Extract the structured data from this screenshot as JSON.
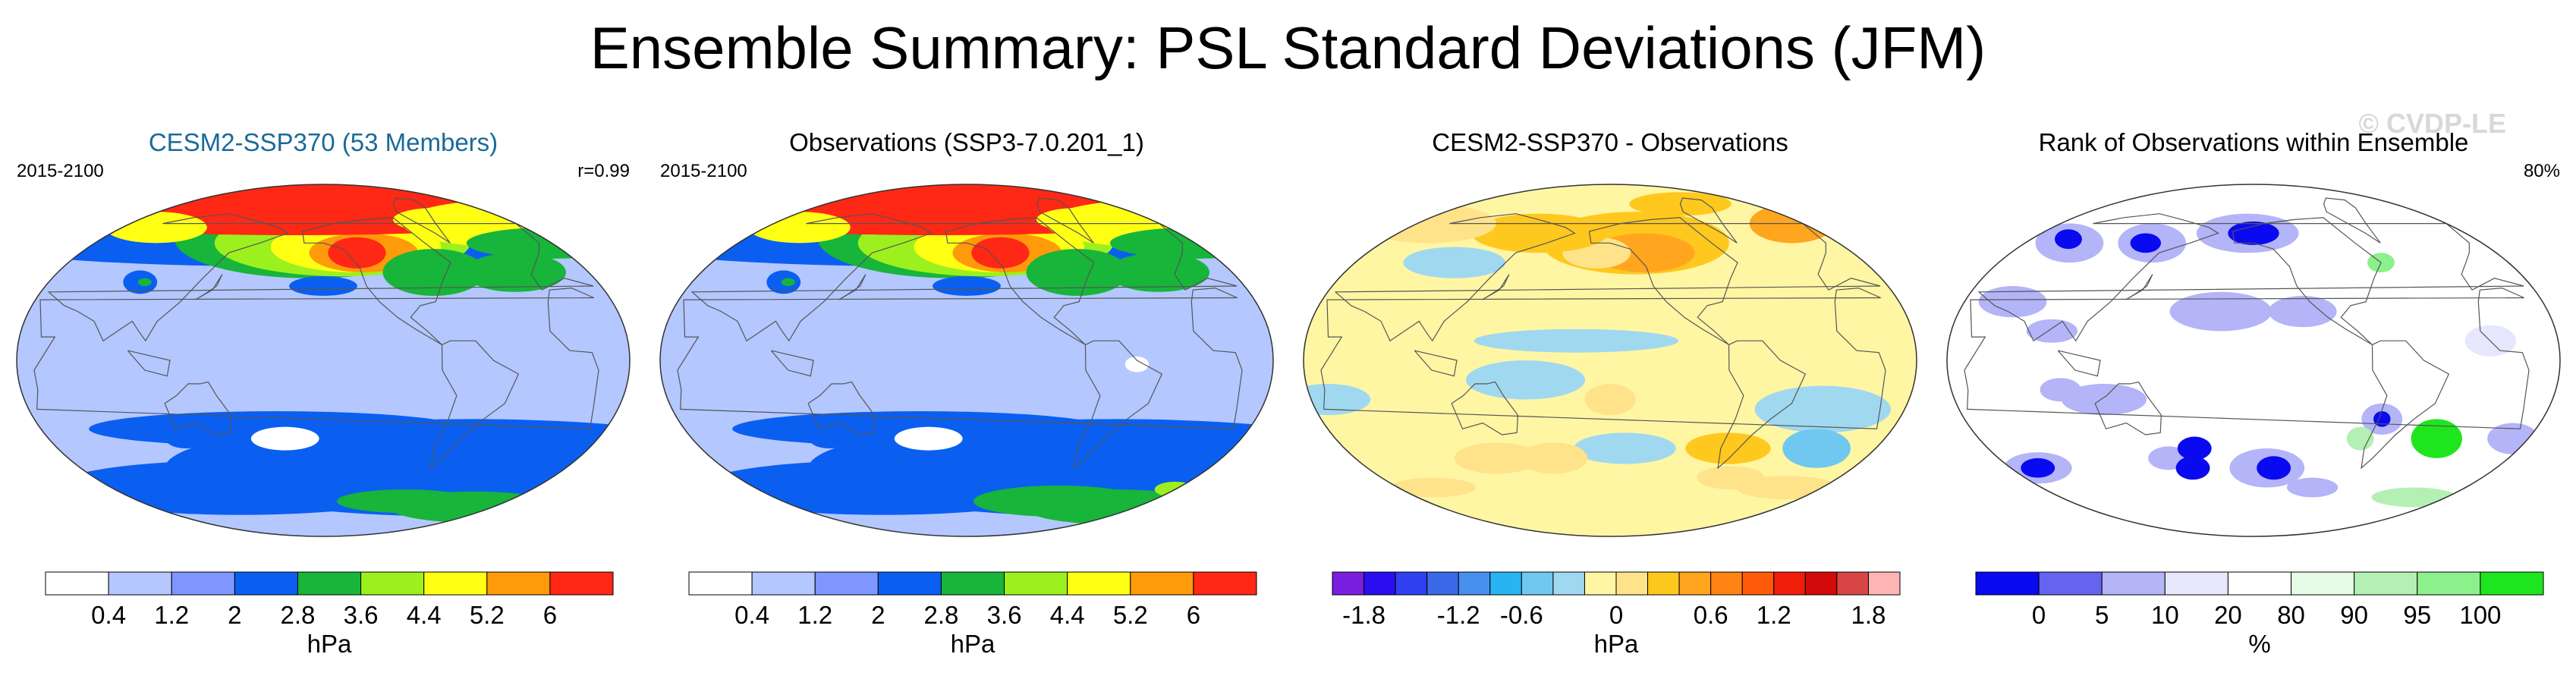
{
  "title": "Ensemble Summary: PSL Standard Deviations (JFM)",
  "watermark": "© CVDP-LE",
  "chart_data": [
    {
      "type": "heatmap",
      "title": "CESM2-SSP370 (53 Members)",
      "title_color": "#1a6a9a",
      "left_label": "2015-2100",
      "right_label": "r=0.99",
      "colorbar": {
        "unit": "hPa",
        "colors": [
          "#ffffff",
          "#b4c7ff",
          "#7f96ff",
          "#0a5ff0",
          "#17b53a",
          "#9cf01e",
          "#ffff14",
          "#ff9a0a",
          "#ff2814"
        ],
        "tick_labels": [
          "0.4",
          "1.2",
          "2",
          "2.8",
          "3.6",
          "4.4",
          "5.2",
          "6"
        ]
      },
      "blobs": [
        {
          "lon": 180,
          "lat": -35,
          "rx": 110,
          "ry": 9,
          "c": 3
        },
        {
          "lon": -40,
          "lat": -55,
          "rx": 180,
          "ry": 25,
          "c": 3
        },
        {
          "lon": 140,
          "lat": -65,
          "rx": 110,
          "ry": 14,
          "c": 3
        },
        {
          "lon": -100,
          "lat": -55,
          "rx": 60,
          "ry": 12,
          "c": 3
        },
        {
          "lon": 10,
          "lat": -75,
          "rx": 50,
          "ry": 8,
          "c": 4
        },
        {
          "lon": -70,
          "lat": -72,
          "rx": 40,
          "ry": 6,
          "c": 4
        },
        {
          "lon": 120,
          "lat": -40,
          "rx": 12,
          "ry": 5,
          "c": 3
        },
        {
          "lon": -175,
          "lat": -40,
          "rx": 20,
          "ry": 6,
          "c": 0
        },
        {
          "lon": 180,
          "lat": 60,
          "rx": 180,
          "ry": 12,
          "c": 3
        },
        {
          "lon": -160,
          "lat": 62,
          "rx": 80,
          "ry": 20,
          "c": 4
        },
        {
          "lon": -135,
          "lat": 60,
          "rx": 75,
          "ry": 17,
          "c": 5
        },
        {
          "lon": -125,
          "lat": 58,
          "rx": 50,
          "ry": 13,
          "c": 6
        },
        {
          "lon": -120,
          "lat": 55,
          "rx": 32,
          "ry": 10,
          "c": 7
        },
        {
          "lon": -125,
          "lat": 55,
          "rx": 17,
          "ry": 8,
          "c": 8
        },
        {
          "lon": 180,
          "lat": 77,
          "rx": 180,
          "ry": 13,
          "c": 8
        },
        {
          "lon": 20,
          "lat": 70,
          "rx": 60,
          "ry": 12,
          "c": 6
        },
        {
          "lon": 30,
          "lat": 60,
          "rx": 50,
          "ry": 8,
          "c": 4
        },
        {
          "lon": -40,
          "lat": 72,
          "rx": 25,
          "ry": 6,
          "c": 6
        },
        {
          "lon": 60,
          "lat": 68,
          "rx": 30,
          "ry": 8,
          "c": 6
        },
        {
          "lon": -75,
          "lat": 45,
          "rx": 30,
          "ry": 12,
          "c": 4
        },
        {
          "lon": -20,
          "lat": 45,
          "rx": 30,
          "ry": 10,
          "c": 4
        },
        {
          "lon": -150,
          "lat": 38,
          "rx": 20,
          "ry": 5,
          "c": 3
        },
        {
          "lon": 90,
          "lat": 40,
          "rx": 10,
          "ry": 6,
          "c": 3
        },
        {
          "lon": 93,
          "lat": 40,
          "rx": 4,
          "ry": 2,
          "c": 4
        }
      ]
    },
    {
      "type": "heatmap",
      "title": "Observations (SSP3-7.0.201_1)",
      "title_color": "#000000",
      "left_label": "2015-2100",
      "right_label": "",
      "colorbar": {
        "unit": "hPa",
        "colors": [
          "#ffffff",
          "#b4c7ff",
          "#7f96ff",
          "#0a5ff0",
          "#17b53a",
          "#9cf01e",
          "#ffff14",
          "#ff9a0a",
          "#ff2814"
        ],
        "tick_labels": [
          "0.4",
          "1.2",
          "2",
          "2.8",
          "3.6",
          "4.4",
          "5.2",
          "6"
        ]
      },
      "blobs": [
        {
          "lon": 180,
          "lat": -35,
          "rx": 110,
          "ry": 9,
          "c": 3
        },
        {
          "lon": -40,
          "lat": -55,
          "rx": 180,
          "ry": 25,
          "c": 3
        },
        {
          "lon": 140,
          "lat": -65,
          "rx": 110,
          "ry": 14,
          "c": 3
        },
        {
          "lon": -100,
          "lat": -55,
          "rx": 60,
          "ry": 12,
          "c": 3
        },
        {
          "lon": 10,
          "lat": -75,
          "rx": 55,
          "ry": 9,
          "c": 4
        },
        {
          "lon": -60,
          "lat": -72,
          "rx": 50,
          "ry": 8,
          "c": 4
        },
        {
          "lon": 30,
          "lat": -66,
          "rx": 12,
          "ry": 4,
          "c": 5
        },
        {
          "lon": 120,
          "lat": -40,
          "rx": 12,
          "ry": 5,
          "c": 3
        },
        {
          "lon": -175,
          "lat": -40,
          "rx": 20,
          "ry": 6,
          "c": 0
        },
        {
          "lon": 180,
          "lat": 60,
          "rx": 180,
          "ry": 12,
          "c": 3
        },
        {
          "lon": -160,
          "lat": 62,
          "rx": 80,
          "ry": 20,
          "c": 4
        },
        {
          "lon": -135,
          "lat": 60,
          "rx": 75,
          "ry": 17,
          "c": 5
        },
        {
          "lon": -125,
          "lat": 58,
          "rx": 50,
          "ry": 13,
          "c": 6
        },
        {
          "lon": -120,
          "lat": 55,
          "rx": 32,
          "ry": 10,
          "c": 7
        },
        {
          "lon": -125,
          "lat": 55,
          "rx": 17,
          "ry": 8,
          "c": 8
        },
        {
          "lon": 180,
          "lat": 77,
          "rx": 180,
          "ry": 13,
          "c": 8
        },
        {
          "lon": 20,
          "lat": 70,
          "rx": 60,
          "ry": 12,
          "c": 6
        },
        {
          "lon": 30,
          "lat": 60,
          "rx": 50,
          "ry": 8,
          "c": 4
        },
        {
          "lon": -40,
          "lat": 72,
          "rx": 25,
          "ry": 6,
          "c": 6
        },
        {
          "lon": 60,
          "lat": 68,
          "rx": 30,
          "ry": 8,
          "c": 6
        },
        {
          "lon": -75,
          "lat": 45,
          "rx": 30,
          "ry": 12,
          "c": 4
        },
        {
          "lon": -20,
          "lat": 45,
          "rx": 30,
          "ry": 10,
          "c": 4
        },
        {
          "lon": -150,
          "lat": 38,
          "rx": 20,
          "ry": 5,
          "c": 3
        },
        {
          "lon": 90,
          "lat": 40,
          "rx": 10,
          "ry": 6,
          "c": 3
        },
        {
          "lon": 93,
          "lat": 40,
          "rx": 4,
          "ry": 2,
          "c": 4
        },
        {
          "lon": -50,
          "lat": -2,
          "rx": 7,
          "ry": 4,
          "c": 0
        }
      ]
    },
    {
      "type": "heatmap",
      "title": "CESM2-SSP370 - Observations",
      "title_color": "#000000",
      "left_label": "",
      "right_label": "",
      "colorbar": {
        "unit": "hPa",
        "colors": [
          "#7a1ee0",
          "#2a0ef0",
          "#3040f0",
          "#3a6ae8",
          "#4890f0",
          "#28b4f0",
          "#70c8f0",
          "#a0d8f0",
          "#fff6a4",
          "#ffe38a",
          "#ffc81e",
          "#ffa61e",
          "#ff8414",
          "#ff5a0a",
          "#f01e0a",
          "#d20a0a",
          "#d84646",
          "#ffb4b4"
        ],
        "tick_labels": [
          "-1.8",
          "-1.2",
          "-0.6",
          "0",
          "0.6",
          "1.2",
          "1.8"
        ]
      },
      "blobs": [
        {
          "lon": -20,
          "lat": -25,
          "rx": 40,
          "ry": 12,
          "c": 7
        },
        {
          "lon": 160,
          "lat": -10,
          "rx": 35,
          "ry": 10,
          "c": 7
        },
        {
          "lon": -170,
          "lat": 10,
          "rx": 60,
          "ry": 6,
          "c": 7
        },
        {
          "lon": -10,
          "lat": -45,
          "rx": 20,
          "ry": 10,
          "c": 6
        },
        {
          "lon": 100,
          "lat": 50,
          "rx": 30,
          "ry": 8,
          "c": 7
        },
        {
          "lon": 40,
          "lat": -20,
          "rx": 25,
          "ry": 8,
          "c": 7
        },
        {
          "lon": -140,
          "lat": -45,
          "rx": 30,
          "ry": 8,
          "c": 7
        },
        {
          "lon": -130,
          "lat": 60,
          "rx": 55,
          "ry": 16,
          "c": 10
        },
        {
          "lon": -125,
          "lat": 55,
          "rx": 30,
          "ry": 10,
          "c": 11
        },
        {
          "lon": -160,
          "lat": 55,
          "rx": 20,
          "ry": 8,
          "c": 9
        },
        {
          "lon": 150,
          "lat": 65,
          "rx": 40,
          "ry": 10,
          "c": 10
        },
        {
          "lon": 40,
          "lat": 70,
          "rx": 40,
          "ry": 10,
          "c": 9
        },
        {
          "lon": 20,
          "lat": 70,
          "rx": 25,
          "ry": 10,
          "c": 11
        },
        {
          "lon": -60,
          "lat": 80,
          "rx": 30,
          "ry": 6,
          "c": 10
        },
        {
          "lon": -70,
          "lat": -45,
          "rx": 25,
          "ry": 8,
          "c": 10
        },
        {
          "lon": -55,
          "lat": -60,
          "rx": 20,
          "ry": 6,
          "c": 9
        },
        {
          "lon": 130,
          "lat": -50,
          "rx": 25,
          "ry": 8,
          "c": 9
        },
        {
          "lon": 60,
          "lat": -65,
          "rx": 25,
          "ry": 5,
          "c": 9
        },
        {
          "lon": -150,
          "lat": -20,
          "rx": 15,
          "ry": 8,
          "c": 9
        },
        {
          "lon": 170,
          "lat": -50,
          "rx": 20,
          "ry": 8,
          "c": 9
        },
        {
          "lon": 0,
          "lat": -65,
          "rx": 30,
          "ry": 6,
          "c": 9
        }
      ]
    },
    {
      "type": "heatmap",
      "title": "Rank of Observations within Ensemble",
      "title_color": "#000000",
      "left_label": "",
      "right_label": "80%",
      "colorbar": {
        "unit": "%",
        "colors": [
          "#0a0af0",
          "#6464f0",
          "#b4b4f8",
          "#e6e6fc",
          "#ffffff",
          "#e6fce6",
          "#b4f0b4",
          "#8cf08c",
          "#1ee61e"
        ],
        "tick_labels": [
          "0",
          "5",
          "10",
          "20",
          "80",
          "90",
          "95",
          "100"
        ]
      },
      "blobs": [
        {
          "lon": -155,
          "lat": 65,
          "rx": 30,
          "ry": 10,
          "c": 2
        },
        {
          "lon": -150,
          "lat": 65,
          "rx": 15,
          "ry": 6,
          "c": 0
        },
        {
          "lon": 130,
          "lat": 60,
          "rx": 20,
          "ry": 10,
          "c": 2
        },
        {
          "lon": 125,
          "lat": 60,
          "rx": 9,
          "ry": 5,
          "c": 0
        },
        {
          "lon": 65,
          "lat": 60,
          "rx": 20,
          "ry": 10,
          "c": 2
        },
        {
          "lon": 60,
          "lat": 62,
          "rx": 8,
          "ry": 5,
          "c": 0
        },
        {
          "lon": 60,
          "lat": 30,
          "rx": 20,
          "ry": 8,
          "c": 2
        },
        {
          "lon": 90,
          "lat": 15,
          "rx": 15,
          "ry": 6,
          "c": 2
        },
        {
          "lon": -170,
          "lat": 25,
          "rx": 30,
          "ry": 10,
          "c": 2
        },
        {
          "lon": -120,
          "lat": 25,
          "rx": 20,
          "ry": 8,
          "c": 2
        },
        {
          "lon": -140,
          "lat": -55,
          "rx": 22,
          "ry": 10,
          "c": 2
        },
        {
          "lon": -135,
          "lat": -55,
          "rx": 10,
          "ry": 6,
          "c": 0
        },
        {
          "lon": -70,
          "lat": -30,
          "rx": 12,
          "ry": 8,
          "c": 2
        },
        {
          "lon": -70,
          "lat": -30,
          "rx": 5,
          "ry": 4,
          "c": 0
        },
        {
          "lon": -30,
          "lat": -40,
          "rx": 15,
          "ry": 10,
          "c": 8
        },
        {
          "lon": 20,
          "lat": -40,
          "rx": 15,
          "ry": 8,
          "c": 2
        },
        {
          "lon": 50,
          "lat": -55,
          "rx": 20,
          "ry": 8,
          "c": 2
        },
        {
          "lon": 50,
          "lat": -55,
          "rx": 10,
          "ry": 5,
          "c": 0
        },
        {
          "lon": 120,
          "lat": -20,
          "rx": 25,
          "ry": 8,
          "c": 2
        },
        {
          "lon": 150,
          "lat": -50,
          "rx": 12,
          "ry": 6,
          "c": 2
        },
        {
          "lon": -100,
          "lat": -65,
          "rx": 15,
          "ry": 5,
          "c": 2
        },
        {
          "lon": 170,
          "lat": -45,
          "rx": 10,
          "ry": 6,
          "c": 0
        },
        {
          "lon": -10,
          "lat": 10,
          "rx": 15,
          "ry": 8,
          "c": 3
        },
        {
          "lon": 0,
          "lat": -70,
          "rx": 25,
          "ry": 5,
          "c": 6
        },
        {
          "lon": -60,
          "lat": 50,
          "rx": 8,
          "ry": 5,
          "c": 7
        },
        {
          "lon": -80,
          "lat": -40,
          "rx": 8,
          "ry": 6,
          "c": 6
        },
        {
          "lon": 95,
          "lat": -15,
          "rx": 12,
          "ry": 6,
          "c": 2
        },
        {
          "lon": 165,
          "lat": -55,
          "rx": 10,
          "ry": 6,
          "c": 0
        }
      ]
    }
  ]
}
